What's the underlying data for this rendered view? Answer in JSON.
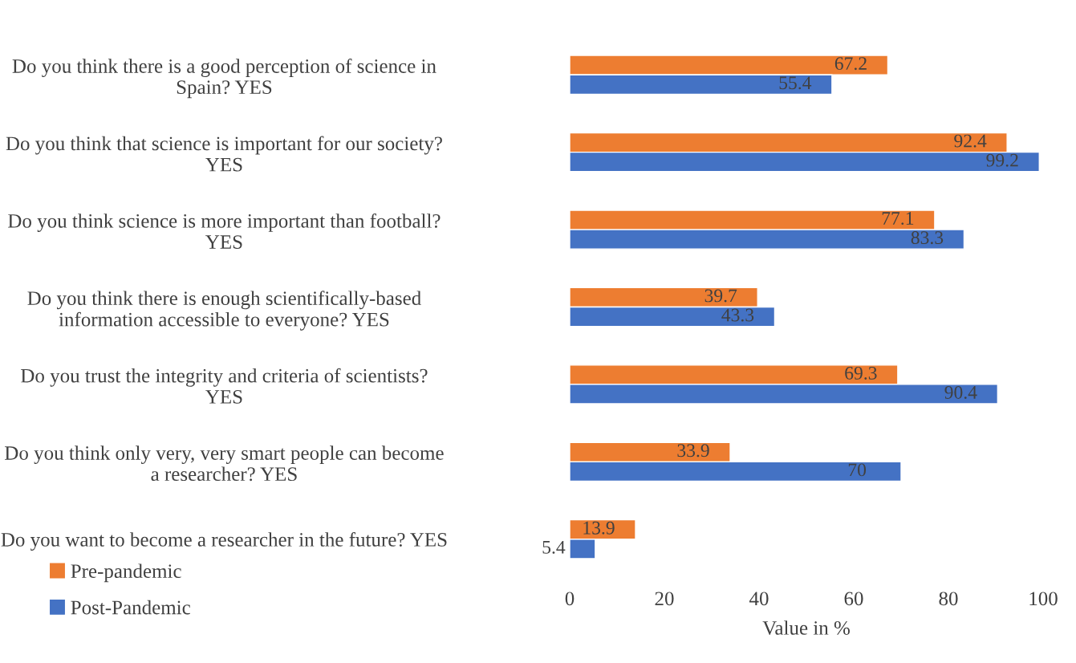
{
  "chart_data": {
    "type": "bar",
    "orientation": "horizontal",
    "xlabel": "Value in %",
    "categories": [
      "Do you think there is a good perception of science in Spain? YES",
      "Do you think that science is important for our society? YES",
      "Do you think science is more important than football? YES",
      "Do you think there is enough scientifically-based information accessible to everyone? YES",
      "Do you trust the integrity and criteria of scientists? YES",
      "Do you think only very, very smart people can become a researcher? YES",
      "Do you want to become a researcher in the future? YES"
    ],
    "series": [
      {
        "name": "Pre-pandemic",
        "color": "#ed7d31",
        "values": [
          67.2,
          92.4,
          77.1,
          39.7,
          69.3,
          33.9,
          13.9
        ]
      },
      {
        "name": "Post-Pandemic",
        "color": "#4472c4",
        "values": [
          55.4,
          99.2,
          83.3,
          43.3,
          90.4,
          70,
          5.4
        ]
      }
    ],
    "xlim": [
      0,
      100
    ],
    "xticks": [
      0,
      20,
      40,
      60,
      80,
      100
    ],
    "data_labels": true,
    "grid": false,
    "legend": "bottom left"
  }
}
